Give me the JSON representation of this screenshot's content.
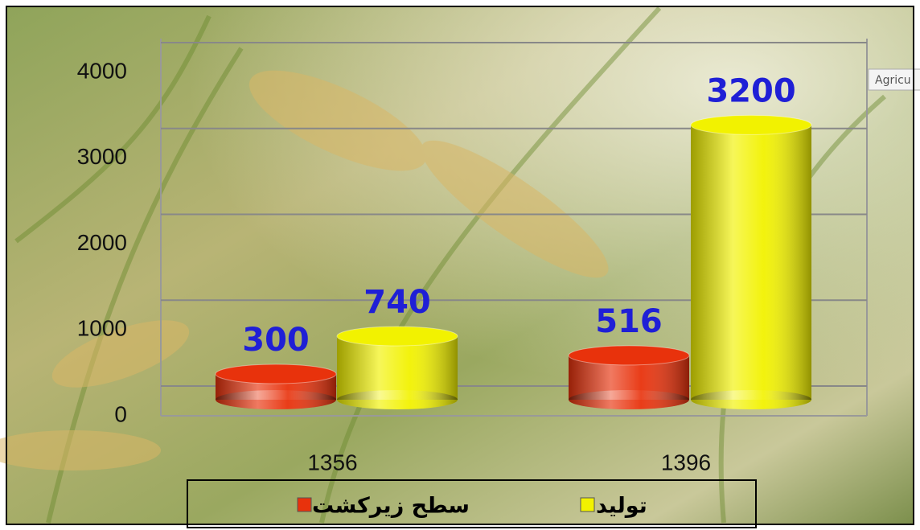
{
  "chart_data": {
    "type": "cylinder-bar",
    "categories": [
      "1356",
      "1396"
    ],
    "series": [
      {
        "name": "سطح زیرکشت",
        "color": "#e8320c",
        "values": [
          300,
          516
        ]
      },
      {
        "name": "تولید",
        "color": "#f2f200",
        "values": [
          740,
          3200
        ]
      }
    ],
    "ylim": [
      0,
      4000
    ],
    "yticks": [
      0,
      1000,
      2000,
      3000,
      4000
    ],
    "grid": true,
    "legend": "bottom",
    "label_color": "#1f1fd6",
    "tooltip_text": "Agricu"
  }
}
